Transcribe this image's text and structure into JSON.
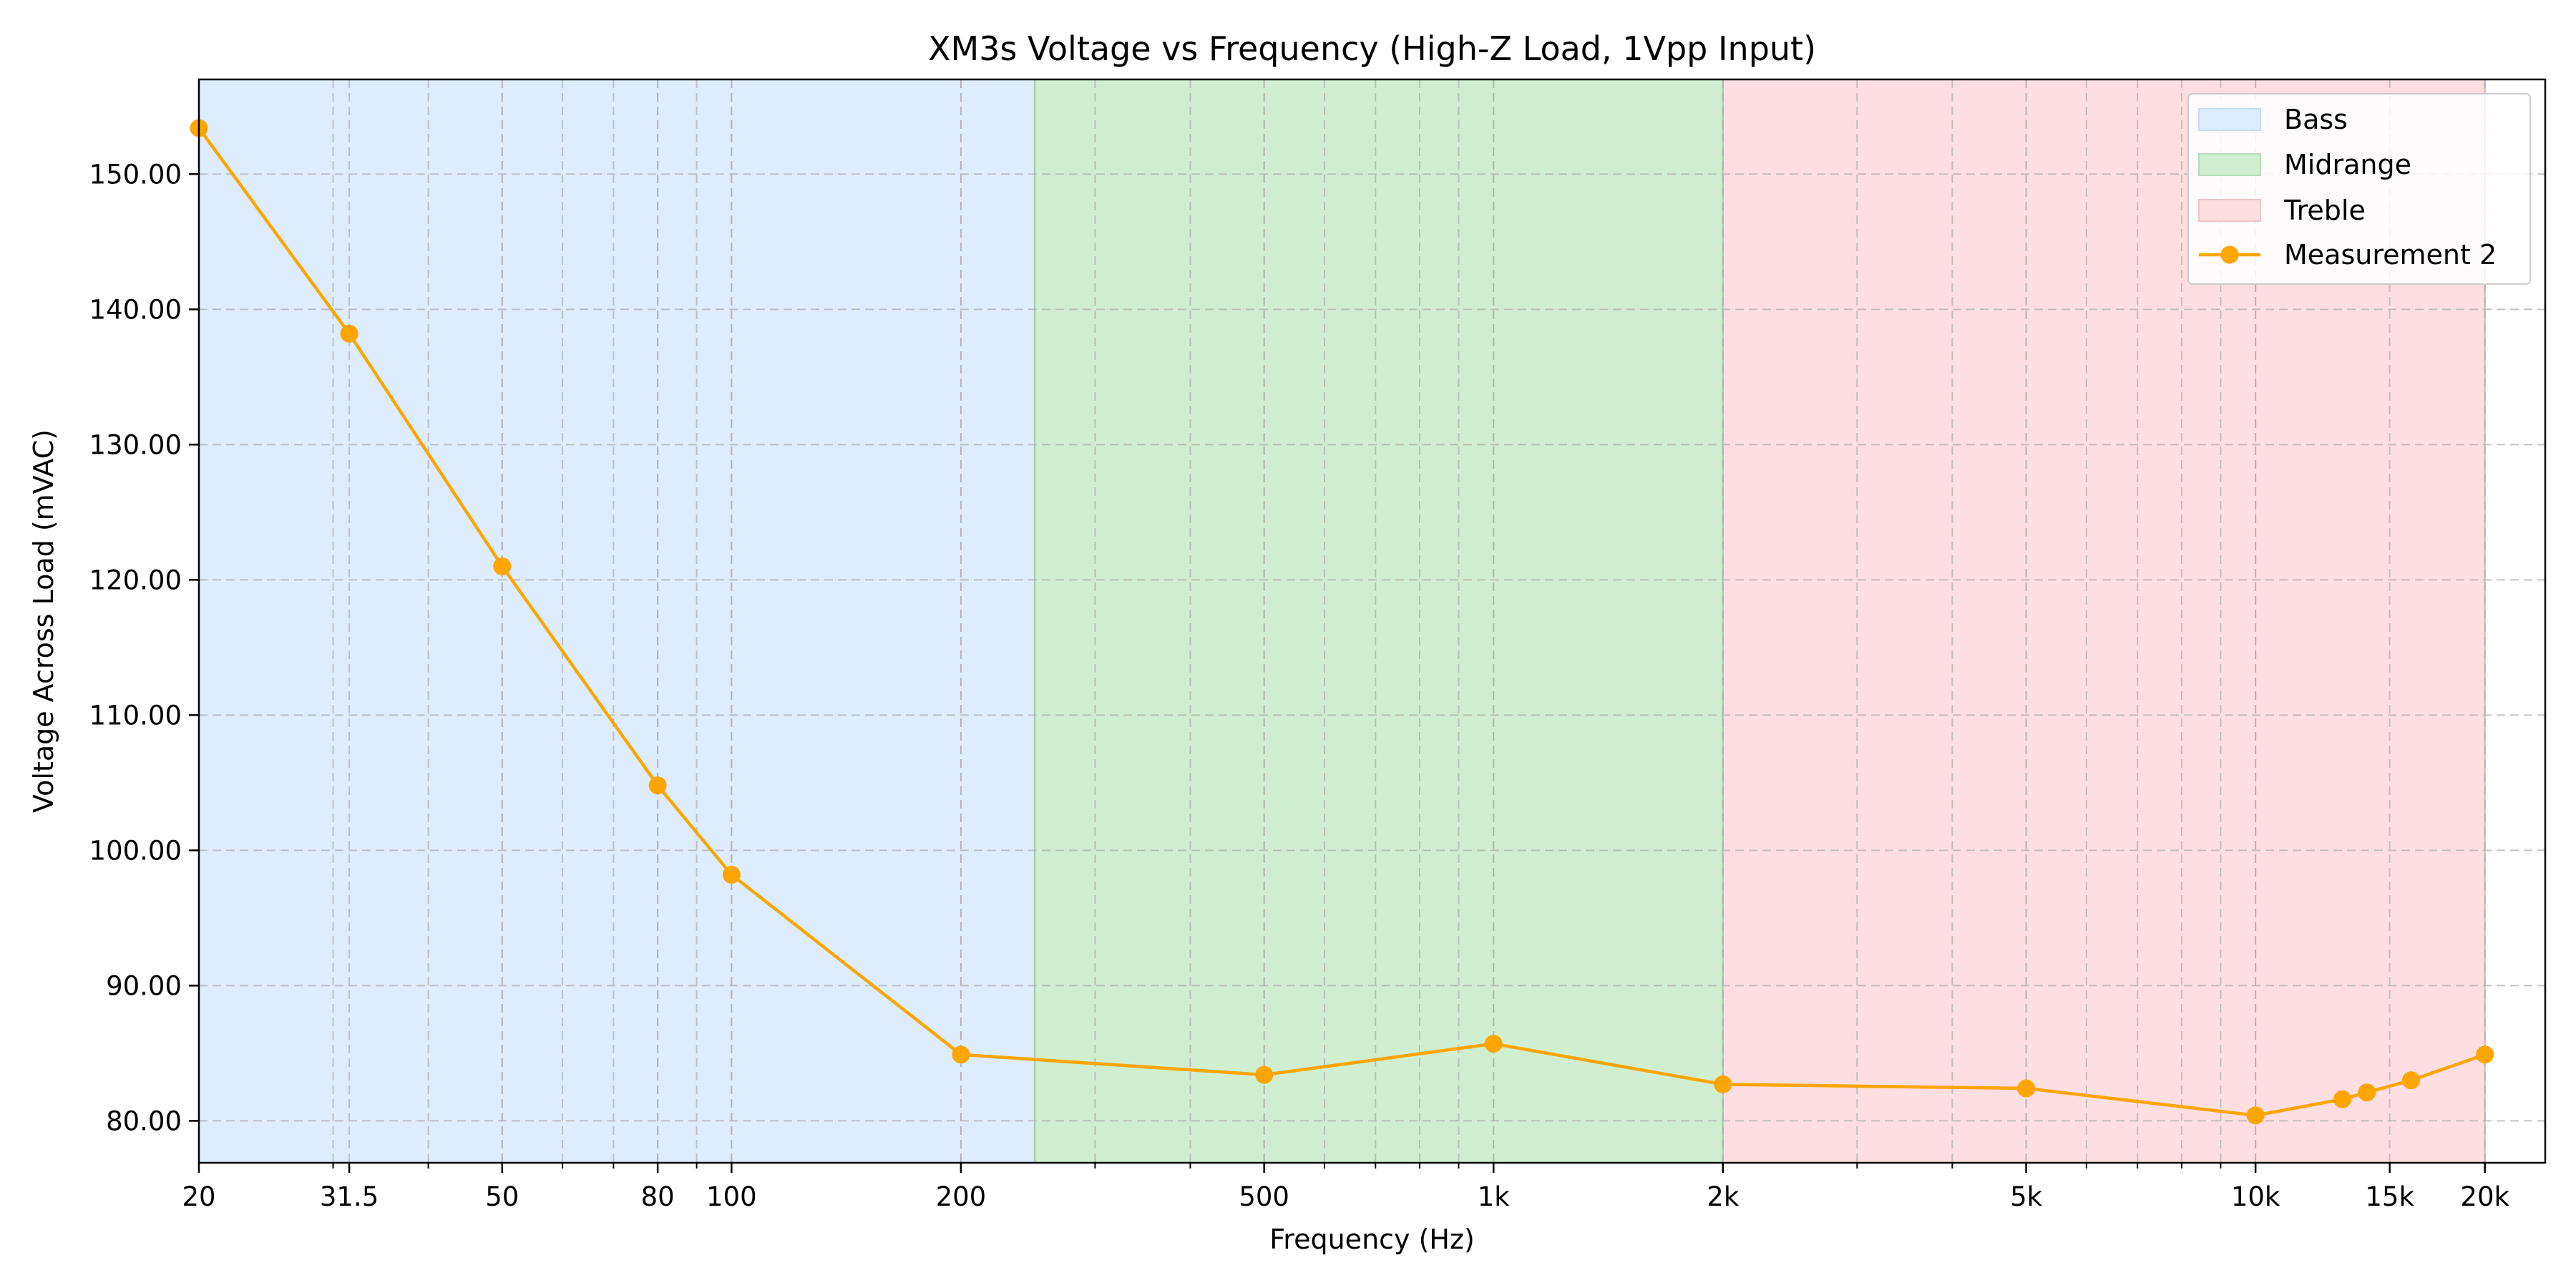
{
  "chart_data": {
    "type": "line",
    "title": "XM3s Voltage vs Frequency (High-Z Load, 1Vpp Input)",
    "xlabel": "Frequency (Hz)",
    "ylabel": "Voltage Across Load (mVAC)",
    "x_scale": "log",
    "xlim": [
      20,
      24000
    ],
    "ylim": [
      76.9,
      157
    ],
    "grid": true,
    "legend_position": "top-right",
    "x_ticks": [
      {
        "value": 20,
        "label": "20"
      },
      {
        "value": 31.5,
        "label": "31.5"
      },
      {
        "value": 50,
        "label": "50"
      },
      {
        "value": 80,
        "label": "80"
      },
      {
        "value": 100,
        "label": "100"
      },
      {
        "value": 200,
        "label": "200"
      },
      {
        "value": 500,
        "label": "500"
      },
      {
        "value": 1000,
        "label": "1k"
      },
      {
        "value": 2000,
        "label": "2k"
      },
      {
        "value": 5000,
        "label": "5k"
      },
      {
        "value": 10000,
        "label": "10k"
      },
      {
        "value": 15000,
        "label": "15k"
      },
      {
        "value": 20000,
        "label": "20k"
      }
    ],
    "y_ticks": [
      {
        "value": 80,
        "label": "80.00"
      },
      {
        "value": 90,
        "label": "90.00"
      },
      {
        "value": 100,
        "label": "100.00"
      },
      {
        "value": 110,
        "label": "110.00"
      },
      {
        "value": 120,
        "label": "120.00"
      },
      {
        "value": 130,
        "label": "130.00"
      },
      {
        "value": 140,
        "label": "140.00"
      },
      {
        "value": 150,
        "label": "150.00"
      }
    ],
    "bands": [
      {
        "name": "Bass",
        "x0": 20,
        "x1": 250,
        "color": "#deedfd"
      },
      {
        "name": "Midrange",
        "x0": 250,
        "x1": 2000,
        "color": "#d0efd0"
      },
      {
        "name": "Treble",
        "x0": 2000,
        "x1": 20000,
        "color": "#fedfe1"
      }
    ],
    "series": [
      {
        "name": "Measurement 2",
        "color": "#ffa500",
        "x": [
          20,
          31.5,
          50,
          80,
          100,
          200,
          500,
          1000,
          2000,
          5000,
          10000,
          13000,
          14000,
          16000,
          20000
        ],
        "y": [
          153.4,
          138.2,
          121.0,
          104.8,
          98.2,
          84.9,
          83.4,
          85.7,
          82.7,
          82.4,
          80.4,
          81.6,
          82.1,
          83.0,
          84.9
        ]
      }
    ]
  }
}
